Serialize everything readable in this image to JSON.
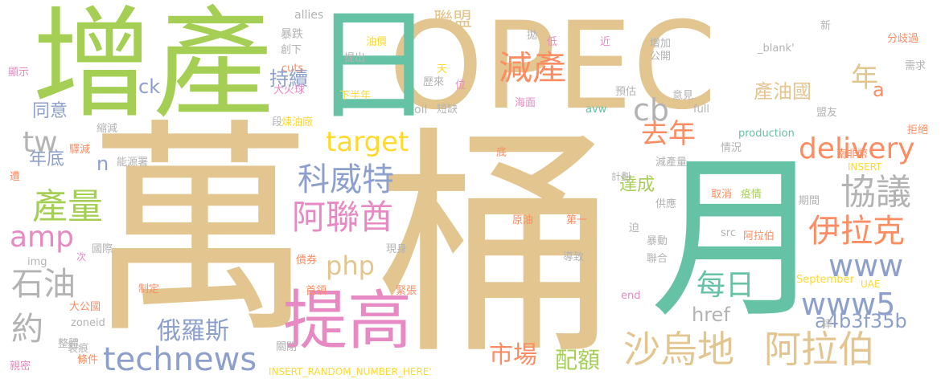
{
  "colors": {
    "tan": "#e3c590",
    "green": "#a5cf54",
    "teal": "#66c2a5",
    "blue": "#8da0cb",
    "orange": "#fc8d62",
    "pink": "#e78ac3",
    "gray": "#b3b3b3",
    "yellow": "#ffd92f"
  },
  "words": [
    {
      "text": "萬",
      "color": "tan"
    },
    {
      "text": "桶",
      "color": "tan"
    },
    {
      "text": "月",
      "color": "teal"
    },
    {
      "text": "OPEC",
      "color": "tan"
    },
    {
      "text": "增產",
      "color": "green"
    },
    {
      "text": "日",
      "color": "teal"
    },
    {
      "text": "提高",
      "color": "pink"
    },
    {
      "text": "沙烏地",
      "color": "tan"
    },
    {
      "text": "阿拉伯",
      "color": "tan"
    },
    {
      "text": "technews",
      "color": "blue"
    },
    {
      "text": "減產",
      "color": "orange"
    },
    {
      "text": "科威特",
      "color": "blue"
    },
    {
      "text": "阿聯酋",
      "color": "pink"
    },
    {
      "text": "產量",
      "color": "green"
    },
    {
      "text": "協議",
      "color": "gray"
    },
    {
      "text": "伊拉克",
      "color": "orange"
    },
    {
      "text": "石油",
      "color": "gray"
    },
    {
      "text": "約",
      "color": "gray"
    },
    {
      "text": "每日",
      "color": "teal"
    },
    {
      "text": "www5",
      "color": "blue"
    },
    {
      "text": "www",
      "color": "blue"
    },
    {
      "text": "delivery",
      "color": "orange"
    },
    {
      "text": "去年",
      "color": "orange"
    },
    {
      "text": "target",
      "color": "yellow"
    },
    {
      "text": "php",
      "color": "tan"
    },
    {
      "text": "市場",
      "color": "orange"
    },
    {
      "text": "配額",
      "color": "green"
    },
    {
      "text": "俄羅斯",
      "color": "blue"
    },
    {
      "text": "amp",
      "color": "pink"
    },
    {
      "text": "cb",
      "color": "gray"
    },
    {
      "text": "tw",
      "color": "gray"
    },
    {
      "text": "a4b3f35b",
      "color": "blue"
    },
    {
      "text": "年",
      "color": "tan"
    },
    {
      "text": "產油國",
      "color": "tan"
    },
    {
      "text": "持續",
      "color": "blue"
    },
    {
      "text": "聯盟",
      "color": "tan"
    },
    {
      "text": "href",
      "color": "gray"
    },
    {
      "text": "達成",
      "color": "green"
    },
    {
      "text": "同意",
      "color": "blue"
    },
    {
      "text": "年底",
      "color": "blue"
    },
    {
      "text": "n",
      "color": "blue"
    },
    {
      "text": "ck",
      "color": "blue"
    },
    {
      "text": "a",
      "color": "orange"
    },
    {
      "text": "allies",
      "color": "gray"
    },
    {
      "text": "暴跌",
      "color": "gray"
    },
    {
      "text": "創下",
      "color": "gray"
    },
    {
      "text": "cuts",
      "color": "orange"
    },
    {
      "text": "油價",
      "color": "yellow"
    },
    {
      "text": "提出",
      "color": "gray"
    },
    {
      "text": "天",
      "color": "yellow"
    },
    {
      "text": "位",
      "color": "pink"
    },
    {
      "text": "下半年",
      "color": "yellow"
    },
    {
      "text": "大火球",
      "color": "pink"
    },
    {
      "text": "歷來",
      "color": "gray"
    },
    {
      "text": "短缺",
      "color": "gray"
    },
    {
      "text": "oil",
      "color": "gray"
    },
    {
      "text": "拋",
      "color": "gray"
    },
    {
      "text": "低",
      "color": "pink"
    },
    {
      "text": "近",
      "color": "pink"
    },
    {
      "text": "增加",
      "color": "gray"
    },
    {
      "text": "公開",
      "color": "gray"
    },
    {
      "text": "預估",
      "color": "gray"
    },
    {
      "text": "海面",
      "color": "pink"
    },
    {
      "text": "avw",
      "color": "teal"
    },
    {
      "text": "意見",
      "color": "gray"
    },
    {
      "text": "full",
      "color": "gray"
    },
    {
      "text": "_blank'",
      "color": "gray"
    },
    {
      "text": "新",
      "color": "gray"
    },
    {
      "text": "分歧過",
      "color": "orange"
    },
    {
      "text": "需求",
      "color": "gray"
    },
    {
      "text": "盟友",
      "color": "gray"
    },
    {
      "text": "拒絕",
      "color": "orange"
    },
    {
      "text": "南非幣",
      "color": "orange"
    },
    {
      "text": "INSERT",
      "color": "yellow"
    },
    {
      "text": "production",
      "color": "teal"
    },
    {
      "text": "情況",
      "color": "gray"
    },
    {
      "text": "減產量",
      "color": "gray"
    },
    {
      "text": "計劃",
      "color": "gray"
    },
    {
      "text": "取消",
      "color": "orange"
    },
    {
      "text": "疫情",
      "color": "green"
    },
    {
      "text": "期間",
      "color": "gray"
    },
    {
      "text": "供應",
      "color": "gray"
    },
    {
      "text": "原油",
      "color": "orange"
    },
    {
      "text": "第一",
      "color": "orange"
    },
    {
      "text": "迫",
      "color": "gray"
    },
    {
      "text": "暴動",
      "color": "gray"
    },
    {
      "text": "src",
      "color": "gray"
    },
    {
      "text": "阿拉伯",
      "color": "orange"
    },
    {
      "text": "導致",
      "color": "gray"
    },
    {
      "text": "聯合",
      "color": "gray"
    },
    {
      "text": "September",
      "color": "yellow"
    },
    {
      "text": "UAE",
      "color": "yellow"
    },
    {
      "text": "end",
      "color": "pink"
    },
    {
      "text": "摔",
      "color": "gray"
    },
    {
      "text": "顯示",
      "color": "pink"
    },
    {
      "text": "縮減",
      "color": "gray"
    },
    {
      "text": "段",
      "color": "gray"
    },
    {
      "text": "煉油廠",
      "color": "yellow"
    },
    {
      "text": "驛減",
      "color": "orange"
    },
    {
      "text": "能源署",
      "color": "gray"
    },
    {
      "text": "底",
      "color": "orange"
    },
    {
      "text": "遭",
      "color": "orange"
    },
    {
      "text": "國際",
      "color": "gray"
    },
    {
      "text": "次",
      "color": "pink"
    },
    {
      "text": "img",
      "color": "gray"
    },
    {
      "text": "現身",
      "color": "gray"
    },
    {
      "text": "債券",
      "color": "orange"
    },
    {
      "text": "制定",
      "color": "orange"
    },
    {
      "text": "首領",
      "color": "orange"
    },
    {
      "text": "緊張",
      "color": "orange"
    },
    {
      "text": "大公國",
      "color": "orange"
    },
    {
      "text": "zoneid",
      "color": "gray"
    },
    {
      "text": "整體",
      "color": "gray"
    },
    {
      "text": "裂痕",
      "color": "gray"
    },
    {
      "text": "條件",
      "color": "orange"
    },
    {
      "text": "關閉",
      "color": "gray"
    },
    {
      "text": "親密",
      "color": "pink"
    },
    {
      "text": "INSERT_RANDOM_NUMBER_HERE'",
      "color": "yellow"
    }
  ]
}
